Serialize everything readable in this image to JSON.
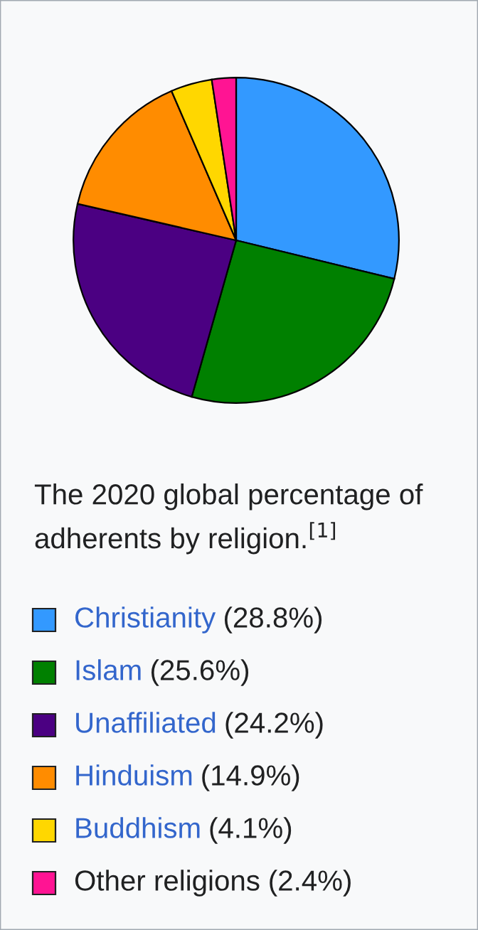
{
  "chart_data": {
    "type": "pie",
    "categories": [
      "Christianity",
      "Islam",
      "Unaffiliated",
      "Hinduism",
      "Buddhism",
      "Other religions"
    ],
    "values": [
      28.8,
      25.6,
      24.2,
      14.9,
      4.1,
      2.4
    ],
    "colors": [
      "#3399ff",
      "#008000",
      "#4b0082",
      "#ff8c00",
      "#ffd700",
      "#ff1493"
    ],
    "value_labels": [
      "(28.8%)",
      "(25.6%)",
      "(24.2%)",
      "(14.9%)",
      "(4.1%)",
      "(2.4%)"
    ],
    "annotations": [
      "The 2020 global percentage of adherents by religion.$^{[1]}$"
    ],
    "legend": "bottom"
  }
}
